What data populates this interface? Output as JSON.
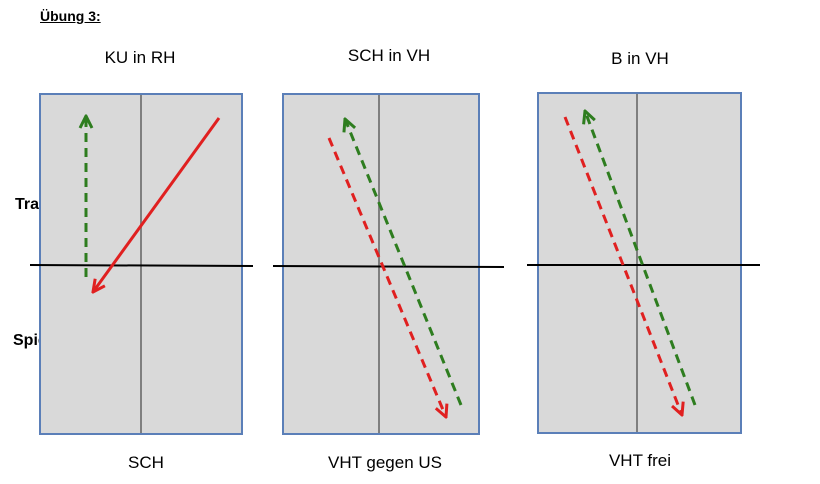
{
  "heading": "Übung 3:",
  "side_labels": {
    "trainer": "Trainer",
    "player": "Spieler A"
  },
  "panels": [
    {
      "title": "KU in RH",
      "caption": "SCH",
      "red_style": "solid"
    },
    {
      "title": "SCH in VH",
      "caption": "VHT gegen US",
      "red_style": "dashed"
    },
    {
      "title": "B in VH",
      "caption": "VHT frei",
      "red_style": "dashed"
    }
  ],
  "colors": {
    "table_fill": "#d9d9d9",
    "table_border": "#5b7fb8",
    "center_line": "#7f7f7f",
    "net_line": "#000000",
    "red_arrow": "#e02020",
    "green_arrow": "#2e7d1f"
  }
}
